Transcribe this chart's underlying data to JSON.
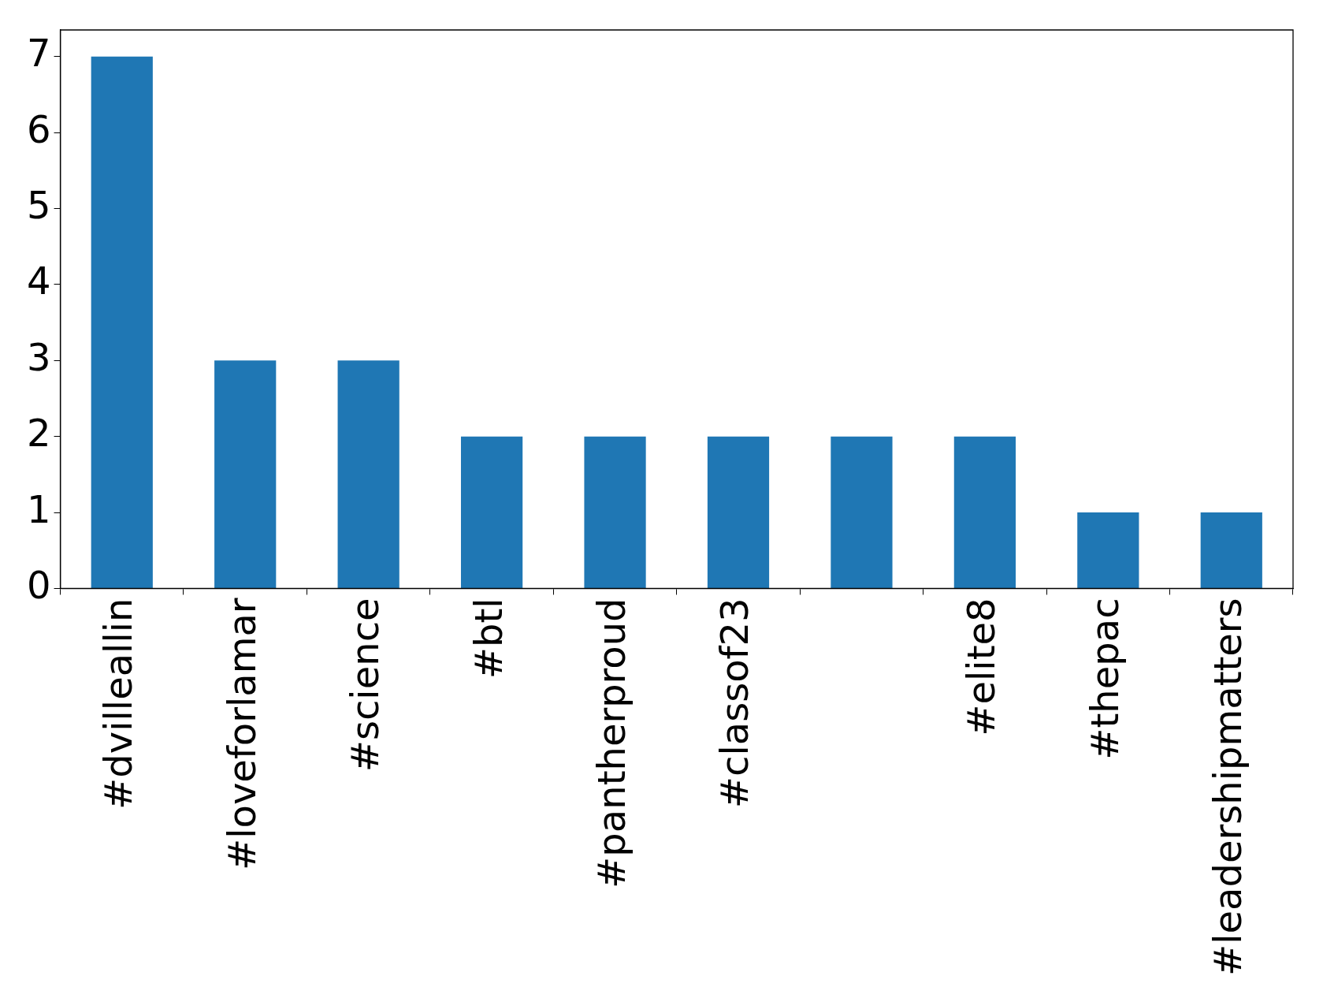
{
  "chart_data": {
    "type": "bar",
    "categories": [
      "#dvilleallin",
      "#loveforlamar",
      "#science",
      "#btl",
      "#pantherproud",
      "#classof23",
      null,
      "#elite8",
      "#thepac",
      "#leadershipmatters"
    ],
    "values": [
      7,
      3,
      3,
      2,
      2,
      2,
      2,
      2,
      1,
      1
    ],
    "color": "#1f77b4",
    "ylim": [
      0,
      7.35
    ],
    "yticks": [
      0,
      1,
      2,
      3,
      4,
      5,
      6,
      7
    ],
    "grid": false,
    "legend": false
  }
}
